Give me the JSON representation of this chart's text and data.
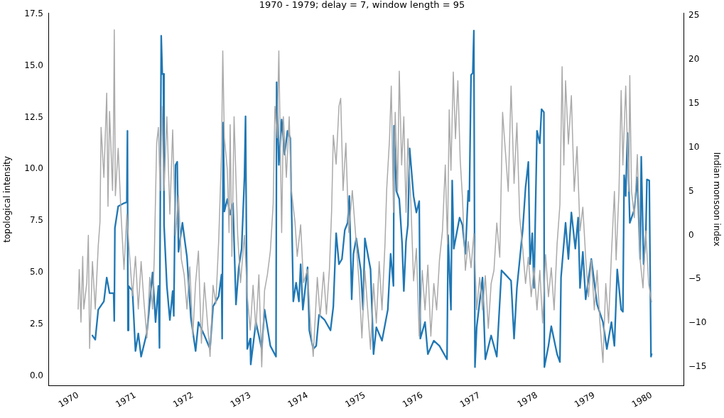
{
  "chart_data": {
    "type": "line",
    "title": "1970 - 1979; delay = 7, window length = 95",
    "ylabel": "topological intensity",
    "y2label": "Indian monsoon index",
    "xlim": [
      "1969-06-25",
      "1980-07-22"
    ],
    "xticks": [
      "1970",
      "1971",
      "1972",
      "1973",
      "1974",
      "1975",
      "1976",
      "1977",
      "1978",
      "1979",
      "1980"
    ],
    "ylim": [
      -0.46,
      17.54
    ],
    "yticks": [
      {
        "value": 0,
        "label": "0.0"
      },
      {
        "value": 2.5,
        "label": "2.5"
      },
      {
        "value": 5,
        "label": "5.0"
      },
      {
        "value": 7.5,
        "label": "7.5"
      },
      {
        "value": 10,
        "label": "10.0"
      },
      {
        "value": 12.5,
        "label": "12.5"
      },
      {
        "value": 15,
        "label": "15.0"
      },
      {
        "value": 17.5,
        "label": "17.5"
      }
    ],
    "y2lim": [
      -17.1,
      25.3
    ],
    "y2ticks": [
      {
        "value": -15,
        "label": "−15"
      },
      {
        "value": -10,
        "label": "−10"
      },
      {
        "value": -5,
        "label": "−5"
      },
      0,
      5,
      10,
      15,
      20,
      25
    ],
    "grid": false,
    "legend": false,
    "marker": "none",
    "line_style": "solid",
    "series": [
      {
        "color": "#1f77b4",
        "x": [
          "1970-04-02",
          "1970-04-20",
          "1970-05-09",
          "1970-06-14",
          "1970-07-02",
          "1970-07-20",
          "1970-08-15",
          "1970-08-19",
          "1970-08-23",
          "1970-09-13",
          "1970-10-20",
          "1970-11-07",
          "1970-11-11",
          "1970-11-14",
          "1970-11-18",
          "1970-12-13",
          "1971-01-01",
          "1971-01-19",
          "1971-02-06",
          "1971-03-15",
          "1971-04-20",
          "1971-05-09",
          "1971-05-27",
          "1971-06-03",
          "1971-06-14",
          "1971-06-21",
          "1971-06-28",
          "1971-07-02",
          "1971-07-20",
          "1971-08-08",
          "1971-08-26",
          "1971-09-02",
          "1971-09-13",
          "1971-09-24",
          "1971-10-02",
          "1971-10-27",
          "1971-11-25",
          "1971-12-20",
          "1972-01-19",
          "1972-02-06",
          "1972-03-15",
          "1972-04-20",
          "1972-05-09",
          "1972-06-14",
          "1972-07-02",
          "1972-07-06",
          "1972-07-13",
          "1972-07-20",
          "1972-08-08",
          "1972-08-26",
          "1972-09-13",
          "1972-10-02",
          "1972-10-20",
          "1972-11-07",
          "1972-11-25",
          "1972-12-02",
          "1972-12-13",
          "1973-01-01",
          "1973-01-04",
          "1973-02-06",
          "1973-03-15",
          "1973-04-02",
          "1973-05-09",
          "1973-06-14",
          "1973-06-18",
          "1973-07-02",
          "1973-07-20",
          "1973-08-08",
          "1973-08-26",
          "1973-09-13",
          "1973-10-02",
          "1973-10-20",
          "1973-11-07",
          "1973-11-18",
          "1973-12-02",
          "1974-01-01",
          "1974-01-12",
          "1974-02-06",
          "1974-02-25",
          "1974-03-15",
          "1974-04-20",
          "1974-05-27",
          "1974-06-14",
          "1974-07-02",
          "1974-07-20",
          "1974-08-08",
          "1974-08-26",
          "1974-09-13",
          "1974-09-24",
          "1974-10-09",
          "1974-10-20",
          "1974-11-07",
          "1974-12-06",
          "1974-12-20",
          "1975-01-01",
          "1975-02-06",
          "1975-02-25",
          "1975-03-15",
          "1975-04-20",
          "1975-05-27",
          "1975-06-14",
          "1975-07-02",
          "1975-07-06",
          "1975-07-20",
          "1975-08-08",
          "1975-08-26",
          "1975-09-06",
          "1975-09-20",
          "1975-10-02",
          "1975-10-13",
          "1975-11-07",
          "1975-11-25",
          "1975-12-13",
          "1975-12-20",
          "1976-01-19",
          "1976-02-06",
          "1976-03-15",
          "1976-04-20",
          "1976-06-07",
          "1976-06-14",
          "1976-07-02",
          "1976-07-10",
          "1976-07-20",
          "1976-08-26",
          "1976-09-13",
          "1976-10-02",
          "1976-10-20",
          "1976-10-27",
          "1976-11-07",
          "1976-11-18",
          "1976-11-25",
          "1976-12-02",
          "1976-12-13",
          "1977-01-19",
          "1977-02-06",
          "1977-03-15",
          "1977-04-20",
          "1977-05-20",
          "1977-06-14",
          "1977-07-20",
          "1977-08-08",
          "1977-08-26",
          "1977-10-02",
          "1977-10-20",
          "1977-11-07",
          "1977-11-18",
          "1977-12-02",
          "1977-12-13",
          "1978-01-01",
          "1978-01-19",
          "1978-01-30",
          "1978-02-14",
          "1978-02-17",
          "1978-03-15",
          "1978-04-02",
          "1978-05-09",
          "1978-05-27",
          "1978-06-03",
          "1978-07-02",
          "1978-07-20",
          "1978-08-08",
          "1978-09-02",
          "1978-09-20",
          "1978-10-02",
          "1978-10-20",
          "1978-11-07",
          "1978-12-13",
          "1979-01-19",
          "1979-02-25",
          "1979-03-22",
          "1979-04-20",
          "1979-05-09",
          "1979-05-27",
          "1979-06-21",
          "1979-07-02",
          "1979-07-10",
          "1979-07-20",
          "1979-07-31",
          "1979-08-15",
          "1979-09-13",
          "1979-10-02",
          "1979-10-20",
          "1979-10-27",
          "1979-11-11",
          "1979-11-25",
          "1979-12-02",
          "1979-12-17",
          "1979-12-28",
          "1980-01-01"
        ],
        "values": [
          1.95,
          1.75,
          3.2,
          3.6,
          4.75,
          4.0,
          4.0,
          2.65,
          7.15,
          8.2,
          8.35,
          8.4,
          11.85,
          2.2,
          4.35,
          4.1,
          1.2,
          2.05,
          0.93,
          2.1,
          5.0,
          2.6,
          4.35,
          1.35,
          16.45,
          14.6,
          14.6,
          7.3,
          4.35,
          2.7,
          4.1,
          2.9,
          10.2,
          10.35,
          6.0,
          7.4,
          5.75,
          2.8,
          1.2,
          2.6,
          1.95,
          1.3,
          3.35,
          3.85,
          4.9,
          1.8,
          12.25,
          7.95,
          8.55,
          7.8,
          8.35,
          3.45,
          5.25,
          6.15,
          9.6,
          12.55,
          1.3,
          1.8,
          0.55,
          2.6,
          1.3,
          3.2,
          1.45,
          0.93,
          14.2,
          10.2,
          12.4,
          10.7,
          11.85,
          11.5,
          3.6,
          4.5,
          3.6,
          5.4,
          3.2,
          5.25,
          2.2,
          1.3,
          1.45,
          2.95,
          2.7,
          2.2,
          3.35,
          6.9,
          5.4,
          5.65,
          7.05,
          7.4,
          8.7,
          3.7,
          5.9,
          6.65,
          5.1,
          3.2,
          6.65,
          5.15,
          1.05,
          2.35,
          1.7,
          3.2,
          5.9,
          4.35,
          12.1,
          8.95,
          8.55,
          6.4,
          4.1,
          6.5,
          7.3,
          11.0,
          8.7,
          7.9,
          8.45,
          1.8,
          2.6,
          1.05,
          1.7,
          1.45,
          0.8,
          6.8,
          3.2,
          9.45,
          6.15,
          7.65,
          7.3,
          5.9,
          8.95,
          8.45,
          14.55,
          14.65,
          16.7,
          0.42,
          2.35,
          4.75,
          0.8,
          1.95,
          0.93,
          5.1,
          4.9,
          4.6,
          1.8,
          4.25,
          7.05,
          9.1,
          10.35,
          5.4,
          6.9,
          4.25,
          11.85,
          11.25,
          12.9,
          12.75,
          0.42,
          1.45,
          2.4,
          1.05,
          0.67,
          4.75,
          7.4,
          5.65,
          7.9,
          6.15,
          7.65,
          4.25,
          6.0,
          3.7,
          5.65,
          3.45,
          2.6,
          1.3,
          2.6,
          1.45,
          5.15,
          3.2,
          3.1,
          9.7,
          8.7,
          11.75,
          7.4,
          8.05,
          9.6,
          5.65,
          10.6,
          5.4,
          6.8,
          9.5,
          9.45,
          0.93,
          1.05
        ]
      },
      {
        "color": "#aaaaaa",
        "axis": "y2",
        "x": [
          "1970-01-01",
          "1970-01-08",
          "1970-01-19",
          "1970-01-30",
          "1970-02-06",
          "1970-02-25",
          "1970-03-07",
          "1970-03-15",
          "1970-04-02",
          "1970-04-20",
          "1970-05-09",
          "1970-05-20",
          "1970-05-27",
          "1970-06-14",
          "1970-07-02",
          "1970-07-10",
          "1970-07-20",
          "1970-08-08",
          "1970-08-15",
          "1970-08-19",
          "1970-08-26",
          "1970-09-13",
          "1970-10-02",
          "1970-10-20",
          "1970-11-07",
          "1970-11-25",
          "1970-12-13",
          "1971-01-01",
          "1971-01-19",
          "1971-02-06",
          "1971-02-25",
          "1971-03-15",
          "1971-04-02",
          "1971-04-20",
          "1971-05-01",
          "1971-05-16",
          "1971-05-27",
          "1971-06-07",
          "1971-06-18",
          "1971-07-02",
          "1971-07-20",
          "1971-08-08",
          "1971-08-26",
          "1971-09-13",
          "1971-10-02",
          "1971-10-20",
          "1971-11-07",
          "1971-11-25",
          "1971-12-13",
          "1972-01-01",
          "1972-01-19",
          "1972-02-06",
          "1972-02-25",
          "1972-03-15",
          "1972-04-20",
          "1972-05-09",
          "1972-05-27",
          "1972-06-14",
          "1972-07-02",
          "1972-07-10",
          "1972-07-20",
          "1972-08-08",
          "1972-08-19",
          "1972-08-26",
          "1972-09-06",
          "1972-09-20",
          "1972-10-13",
          "1972-10-31",
          "1972-11-25",
          "1972-12-13",
          "1973-01-01",
          "1973-01-19",
          "1973-02-06",
          "1973-02-25",
          "1973-03-15",
          "1973-04-02",
          "1973-04-20",
          "1973-05-09",
          "1973-05-27",
          "1973-06-07",
          "1973-06-21",
          "1973-07-02",
          "1973-07-20",
          "1973-07-31",
          "1973-08-19",
          "1973-09-06",
          "1973-09-20",
          "1973-10-13",
          "1973-10-27",
          "1973-11-18",
          "1973-12-06",
          "1974-01-01",
          "1974-01-19",
          "1974-02-06",
          "1974-03-04",
          "1974-03-22",
          "1974-04-13",
          "1974-05-01",
          "1974-05-20",
          "1974-06-03",
          "1974-06-14",
          "1974-07-02",
          "1974-07-20",
          "1974-07-31",
          "1974-08-15",
          "1974-09-02",
          "1974-09-20",
          "1974-10-13",
          "1974-11-07",
          "1974-11-25",
          "1974-12-13",
          "1975-01-01",
          "1975-01-19",
          "1975-02-06",
          "1975-02-25",
          "1975-03-15",
          "1975-04-02",
          "1975-04-20",
          "1975-05-09",
          "1975-05-20",
          "1975-06-07",
          "1975-06-18",
          "1975-07-02",
          "1975-07-13",
          "1975-07-28",
          "1975-08-08",
          "1975-08-23",
          "1975-09-06",
          "1975-09-20",
          "1975-10-02",
          "1975-10-20",
          "1975-11-07",
          "1975-11-25",
          "1975-12-13",
          "1976-01-01",
          "1976-01-19",
          "1976-02-06",
          "1976-02-25",
          "1976-03-15",
          "1976-04-02",
          "1976-04-20",
          "1976-05-09",
          "1976-05-27",
          "1976-06-10",
          "1976-06-21",
          "1976-07-02",
          "1976-07-17",
          "1976-07-31",
          "1976-08-15",
          "1976-08-30",
          "1976-09-13",
          "1976-10-02",
          "1976-10-20",
          "1976-11-07",
          "1976-11-25",
          "1976-12-13",
          "1977-01-01",
          "1977-01-19",
          "1977-02-06",
          "1977-02-25",
          "1977-03-15",
          "1977-04-02",
          "1977-04-20",
          "1977-05-09",
          "1977-05-27",
          "1977-06-14",
          "1977-07-02",
          "1977-07-20",
          "1977-08-08",
          "1977-08-26",
          "1977-09-13",
          "1977-10-02",
          "1977-10-20",
          "1977-11-07",
          "1977-11-25",
          "1977-12-13",
          "1978-01-01",
          "1978-01-19",
          "1978-02-06",
          "1978-02-25",
          "1978-03-15",
          "1978-04-02",
          "1978-04-20",
          "1978-05-09",
          "1978-05-27",
          "1978-06-10",
          "1978-06-21",
          "1978-07-02",
          "1978-07-20",
          "1978-08-08",
          "1978-08-26",
          "1978-09-13",
          "1978-10-02",
          "1978-10-20",
          "1978-11-07",
          "1978-11-25",
          "1978-12-13",
          "1979-01-01",
          "1979-01-19",
          "1979-02-06",
          "1979-02-25",
          "1979-03-15",
          "1979-04-02",
          "1979-04-20",
          "1979-05-09",
          "1979-05-20",
          "1979-06-07",
          "1979-06-21",
          "1979-07-02",
          "1979-07-20",
          "1979-08-08",
          "1979-08-15",
          "1979-08-26",
          "1979-09-13",
          "1979-10-02",
          "1979-10-20",
          "1979-11-07",
          "1979-11-25",
          "1979-12-13",
          "1980-01-01"
        ],
        "values": [
          -8.4,
          -3.9,
          -9.9,
          -2.4,
          -8.4,
          -5.4,
          0.0,
          -12.9,
          -3.0,
          -8.4,
          -1.2,
          1.5,
          12.3,
          6.6,
          16.2,
          3.3,
          14.1,
          5.1,
          13.2,
          23.4,
          4.5,
          9.9,
          2.1,
          -3.9,
          2.4,
          -2.4,
          -6.9,
          -2.4,
          -8.4,
          -3.0,
          -7.8,
          -11.7,
          -4.8,
          -8.4,
          -2.4,
          10.5,
          12.3,
          5.1,
          14.7,
          5.1,
          13.5,
          2.4,
          12.0,
          0.0,
          4.5,
          -2.7,
          -4.5,
          -8.4,
          -3.6,
          -11.4,
          -5.4,
          -1.8,
          -12.3,
          -5.4,
          -13.8,
          -5.7,
          -7.8,
          -0.6,
          9.3,
          21.0,
          11.1,
          7.5,
          0.3,
          12.6,
          -2.4,
          13.5,
          0.0,
          -5.4,
          0.0,
          -6.9,
          -10.8,
          -5.7,
          -10.8,
          -4.5,
          -15.0,
          -6.3,
          -4.5,
          -1.8,
          3.6,
          14.7,
          11.1,
          21.0,
          0.3,
          13.5,
          6.6,
          13.5,
          5.1,
          1.5,
          -2.4,
          1.2,
          -5.4,
          -3.9,
          -9.9,
          -13.8,
          -4.8,
          -9.3,
          -4.2,
          -9.0,
          -3.9,
          2.7,
          11.4,
          8.1,
          14.7,
          15.6,
          5.1,
          10.5,
          0.3,
          5.1,
          -0.9,
          -5.4,
          -11.7,
          -4.0,
          -8.5,
          -13.0,
          -5.5,
          -10.0,
          -3.0,
          -8.5,
          -1.0,
          5.3,
          11.0,
          17.0,
          2.6,
          14.0,
          5.0,
          18.7,
          8.0,
          13.5,
          2.6,
          11.0,
          4.1,
          -5.2,
          -1.5,
          -11.5,
          -4.0,
          -8.5,
          -3.4,
          -11.5,
          -5.5,
          -8.5,
          -2.8,
          0.5,
          8.0,
          -1.0,
          14.3,
          7.4,
          18.6,
          11.0,
          17.6,
          8.6,
          4.4,
          -4.0,
          -0.7,
          -3.7,
          0.2,
          -8.5,
          -4.8,
          -8.5,
          -4.6,
          -10.6,
          -5.5,
          -4.0,
          1.4,
          -2.5,
          14.0,
          9.5,
          5.0,
          17.0,
          5.9,
          12.8,
          2.0,
          -1.5,
          -5.5,
          -2.5,
          -7.0,
          -3.7,
          -8.5,
          -4.0,
          -10.0,
          -2.2,
          -7.0,
          -3.7,
          -8.5,
          -1.0,
          3.5,
          19.2,
          8.0,
          17.6,
          10.4,
          15.9,
          5.0,
          10.1,
          0.5,
          3.2,
          -2.5,
          -7.0,
          -2.8,
          -8.5,
          -4.0,
          -10.0,
          -14.5,
          -5.5,
          -10.0,
          -2.2,
          5.0,
          -2.8,
          5.0,
          16.5,
          8.0,
          17.0,
          5.0,
          18.2,
          5.0,
          2.0,
          9.2,
          -2.8,
          -6.0,
          0.5,
          -5.5,
          -7.6
        ]
      }
    ]
  }
}
